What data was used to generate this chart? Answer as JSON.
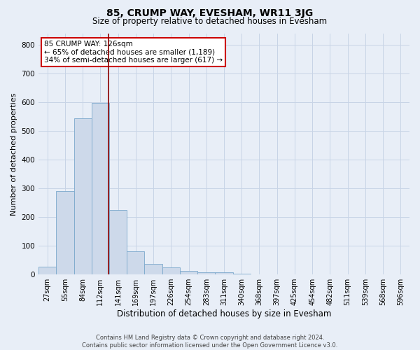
{
  "title": "85, CRUMP WAY, EVESHAM, WR11 3JG",
  "subtitle": "Size of property relative to detached houses in Evesham",
  "xlabel": "Distribution of detached houses by size in Evesham",
  "ylabel": "Number of detached properties",
  "bin_labels": [
    "27sqm",
    "55sqm",
    "84sqm",
    "112sqm",
    "141sqm",
    "169sqm",
    "197sqm",
    "226sqm",
    "254sqm",
    "283sqm",
    "311sqm",
    "340sqm",
    "368sqm",
    "397sqm",
    "425sqm",
    "454sqm",
    "482sqm",
    "511sqm",
    "539sqm",
    "568sqm",
    "596sqm"
  ],
  "bar_values": [
    27,
    290,
    545,
    597,
    225,
    80,
    38,
    25,
    13,
    8,
    7,
    4,
    1,
    0,
    0,
    0,
    0,
    0,
    0,
    0,
    0
  ],
  "bar_color": "#cdd9ea",
  "bar_edge_color": "#7ba8cc",
  "vline_color": "#8b0000",
  "vline_x_index": 3.48,
  "annotation_text": "85 CRUMP WAY: 126sqm\n← 65% of detached houses are smaller (1,189)\n34% of semi-detached houses are larger (617) →",
  "annotation_box_facecolor": "#ffffff",
  "annotation_box_edgecolor": "#cc0000",
  "ylim": [
    0,
    840
  ],
  "yticks": [
    0,
    100,
    200,
    300,
    400,
    500,
    600,
    700,
    800
  ],
  "grid_color": "#c8d4e6",
  "bg_color": "#e8eef7",
  "footer1": "Contains HM Land Registry data © Crown copyright and database right 2024.",
  "footer2": "Contains public sector information licensed under the Open Government Licence v3.0.",
  "title_fontsize": 10,
  "subtitle_fontsize": 8.5,
  "xlabel_fontsize": 8.5,
  "ylabel_fontsize": 8,
  "tick_fontsize": 7,
  "annot_fontsize": 7.5,
  "footer_fontsize": 6
}
